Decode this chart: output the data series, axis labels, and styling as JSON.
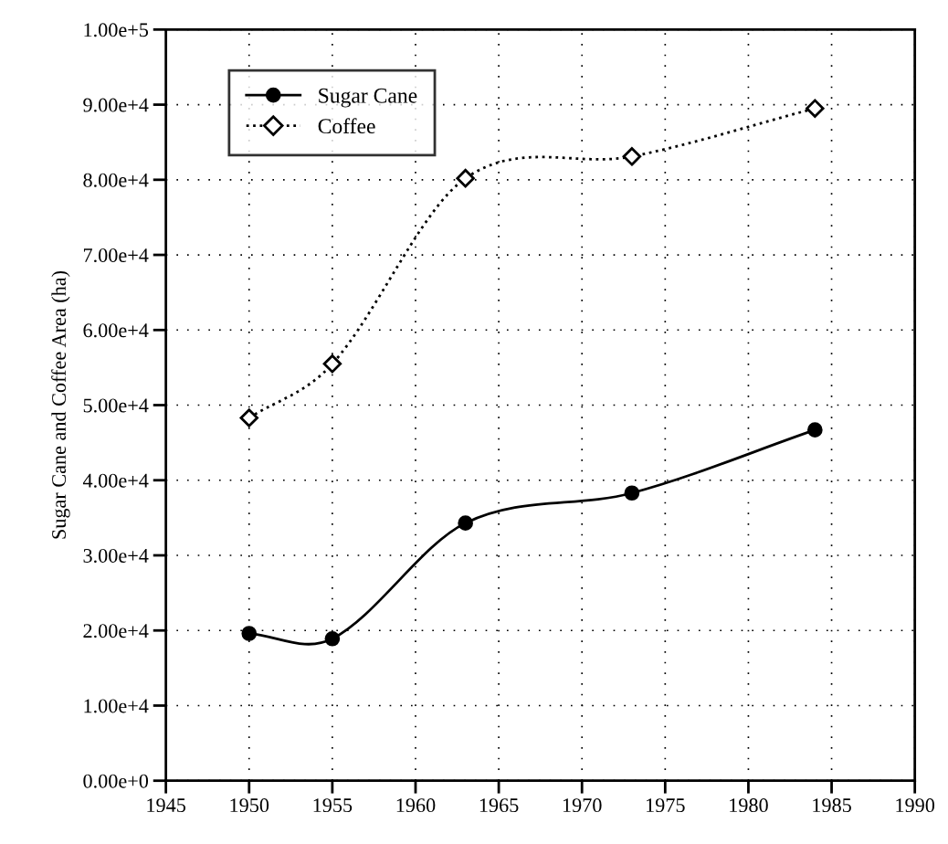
{
  "chart_data": {
    "type": "line",
    "ylabel": "Sugar Cane and Coffee Area (ha)",
    "series": [
      {
        "name": "Sugar Cane",
        "color": "#000000",
        "marker": "circle",
        "line_style": "solid",
        "x": [
          1950,
          1955,
          1963,
          1973,
          1984
        ],
        "values": [
          19600,
          18900,
          34300,
          38300,
          46700
        ]
      },
      {
        "name": "Coffee",
        "color": "#000000",
        "marker": "diamond",
        "line_style": "dotted",
        "x": [
          1950,
          1955,
          1963,
          1973,
          1984
        ],
        "values": [
          48300,
          55500,
          80200,
          83100,
          89500
        ]
      }
    ],
    "xlim": [
      1945,
      1990
    ],
    "xticks": [
      1945,
      1950,
      1955,
      1960,
      1965,
      1970,
      1975,
      1980,
      1985,
      1990
    ],
    "ylim": [
      0,
      100000
    ],
    "yticks": [
      {
        "value": 0,
        "label": "0.00e+0"
      },
      {
        "value": 10000,
        "label": "1.00e+4"
      },
      {
        "value": 20000,
        "label": "2.00e+4"
      },
      {
        "value": 30000,
        "label": "3.00e+4"
      },
      {
        "value": 40000,
        "label": "4.00e+4"
      },
      {
        "value": 50000,
        "label": "5.00e+4"
      },
      {
        "value": 60000,
        "label": "6.00e+4"
      },
      {
        "value": 70000,
        "label": "7.00e+4"
      },
      {
        "value": 80000,
        "label": "8.00e+4"
      },
      {
        "value": 90000,
        "label": "9.00e+4"
      },
      {
        "value": 100000,
        "label": "1.00e+5"
      }
    ],
    "grid": true,
    "legend": "top left"
  }
}
